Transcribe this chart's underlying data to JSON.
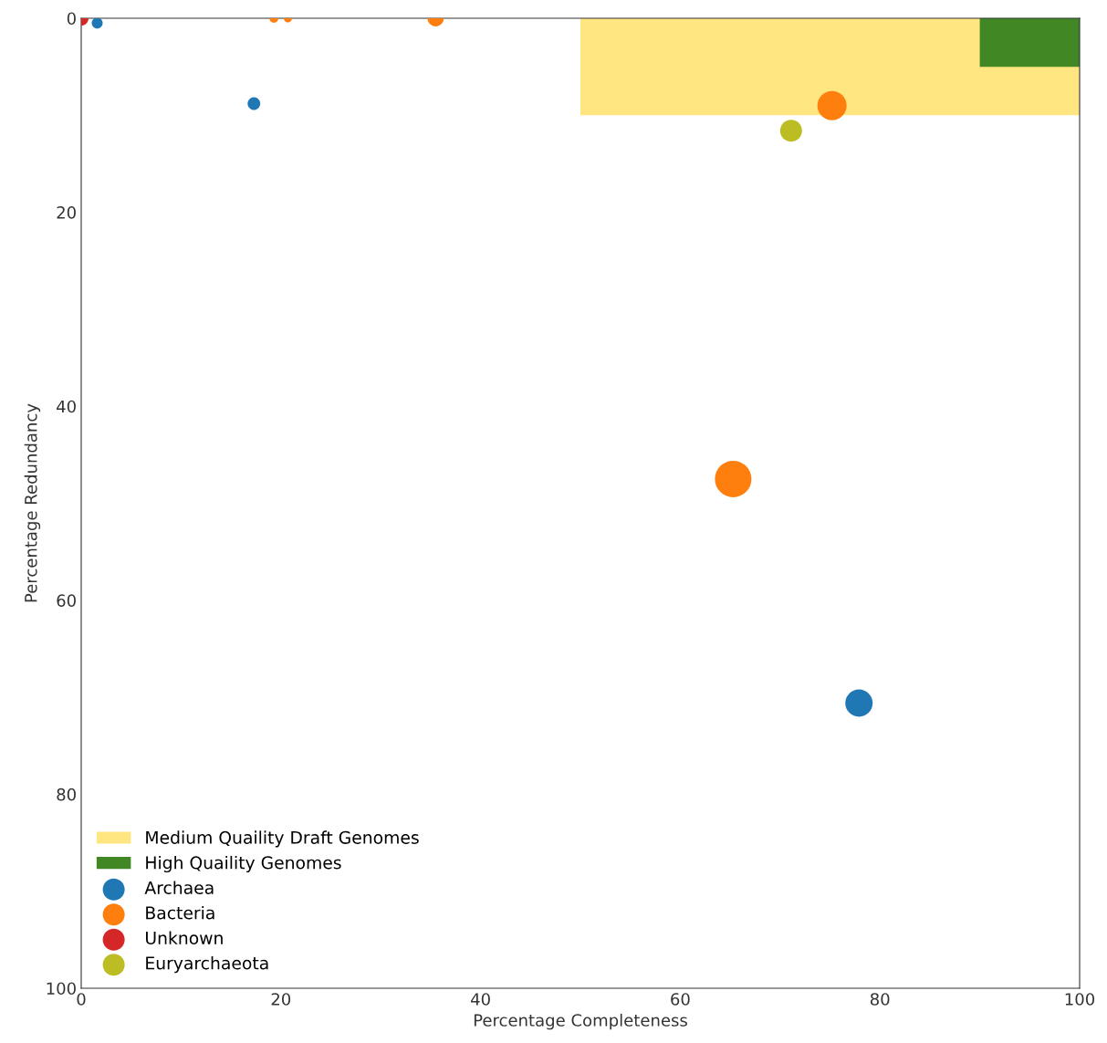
{
  "chart_data": {
    "type": "bubble",
    "xlabel": "Percentage Completeness",
    "ylabel": "Percentage Redundancy",
    "xlim": [
      0,
      100
    ],
    "ylim": [
      100,
      0
    ],
    "xticks": [
      0,
      20,
      40,
      60,
      80,
      100
    ],
    "yticks": [
      0,
      20,
      40,
      60,
      80,
      100
    ],
    "grid": false,
    "legend": "bottom left",
    "series": [
      {
        "type": "area",
        "name": "Medium Quaility Draft Genomes",
        "color": "#ffe680",
        "x": [
          50,
          100
        ],
        "values": [
          10,
          10
        ]
      },
      {
        "type": "area",
        "name": "High Quaility Genomes",
        "color": "#418824",
        "x": [
          90,
          100
        ],
        "values": [
          5,
          5
        ]
      },
      {
        "name": "Archaea",
        "marker": "circle",
        "color": "#1f77b4",
        "x": [
          1.6,
          17.3,
          77.9
        ],
        "values": [
          0.5,
          8.8,
          70.6
        ],
        "sizes": [
          0.09,
          0.12,
          0.56
        ]
      },
      {
        "name": "Bacteria",
        "marker": "circle",
        "color": "#ff7f0e",
        "x": [
          19.3,
          20.7,
          35.5,
          75.2,
          65.3
        ],
        "values": [
          0,
          0,
          0,
          9.0,
          47.5
        ],
        "sizes": [
          0.06,
          0.05,
          0.2,
          0.64,
          1
        ]
      },
      {
        "name": "Unknown",
        "marker": "circle",
        "color": "#d62728",
        "x": [
          0
        ],
        "values": [
          0
        ],
        "sizes": [
          0.16
        ]
      },
      {
        "name": "Euryarchaeota",
        "marker": "circle",
        "color": "#bcbd22",
        "x": [
          71.1
        ],
        "values": [
          11.6
        ],
        "sizes": [
          0.36
        ]
      }
    ]
  }
}
